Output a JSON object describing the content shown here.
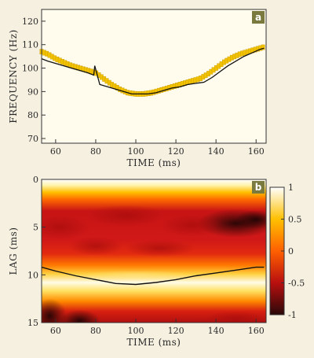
{
  "colors": {
    "page_bg": "#f6f0e0",
    "plot_a_bg": "#fffcee",
    "frame": "#333333",
    "measured": "#f2c200",
    "measured_edge": "#c79a00",
    "model_line": "#111111",
    "badge": "#7b7a3e"
  },
  "chart_data": [
    {
      "panel": "a",
      "type": "line",
      "xlabel": "TIME (ms)",
      "ylabel": "FREQUENCY (Hz)",
      "xlim": [
        53,
        165
      ],
      "ylim": [
        68,
        125
      ],
      "xticks": [
        60,
        80,
        100,
        120,
        140,
        160
      ],
      "yticks": [
        70,
        80,
        90,
        100,
        110,
        120
      ],
      "grid": false,
      "series": [
        {
          "style": "yellow markers",
          "x": [
            53,
            56,
            60,
            64,
            68,
            72,
            76,
            80,
            84,
            88,
            92,
            96,
            100,
            104,
            108,
            112,
            116,
            120,
            124,
            128,
            132,
            136,
            140,
            144,
            148,
            152,
            156,
            160,
            164
          ],
          "y": [
            107,
            106,
            104,
            102.5,
            101,
            100,
            99,
            98,
            95.5,
            93,
            91,
            89.5,
            89,
            89,
            89.5,
            90.5,
            91.5,
            92.5,
            93.5,
            94.5,
            95.5,
            97.5,
            100,
            102.5,
            104.5,
            106,
            107,
            108,
            109
          ]
        },
        {
          "style": "black line",
          "x": [
            53,
            56,
            60,
            64,
            68,
            72,
            76,
            79,
            79.5,
            82,
            86,
            90,
            94,
            98,
            102,
            106,
            110,
            114,
            118,
            122,
            126,
            130,
            134,
            138,
            142,
            146,
            150,
            154,
            158,
            162,
            164
          ],
          "y": [
            104,
            103,
            102,
            101,
            100,
            99,
            98,
            97,
            101,
            93,
            92,
            91,
            90,
            89,
            89,
            89,
            89.5,
            90.5,
            91.5,
            92,
            93,
            93.5,
            94,
            96,
            98.5,
            101,
            103,
            105,
            106.5,
            108,
            108.5
          ]
        }
      ]
    },
    {
      "panel": "b",
      "type": "heatmap",
      "xlabel": "TIME (ms)",
      "ylabel": "LAG (ms)",
      "xlim": [
        53,
        165
      ],
      "ylim": [
        15,
        0
      ],
      "xticks": [
        60,
        80,
        100,
        120,
        140,
        160
      ],
      "yticks": [
        0,
        5,
        10,
        15
      ],
      "colorbar": {
        "range": [
          -1,
          1
        ],
        "ticks": [
          -1,
          -0.5,
          0,
          0.5,
          1
        ],
        "colors": [
          "#2a0808",
          "#b80f0f",
          "#ff6000",
          "#ffc000",
          "#ffffff"
        ]
      },
      "series": [
        {
          "style": "black line",
          "x": [
            53,
            60,
            70,
            80,
            90,
            100,
            110,
            120,
            130,
            140,
            150,
            160,
            164
          ],
          "y": [
            9.2,
            9.6,
            10.1,
            10.5,
            10.9,
            11.0,
            10.8,
            10.5,
            10.1,
            9.8,
            9.5,
            9.2,
            9.2
          ]
        }
      ]
    }
  ]
}
